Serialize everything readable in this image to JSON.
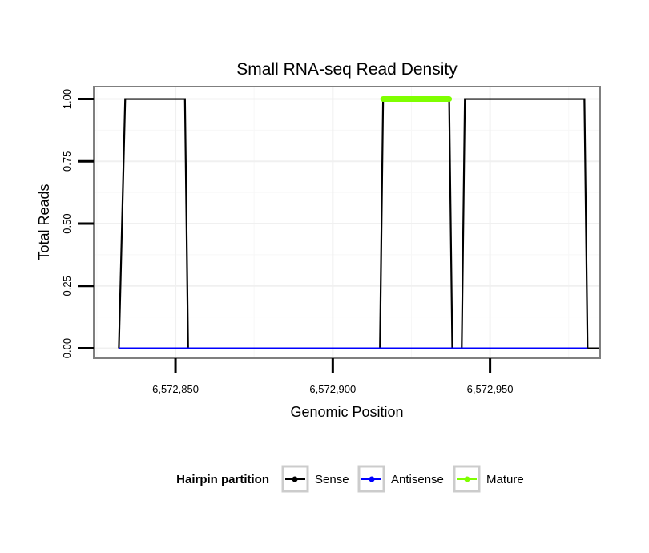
{
  "chart_data": {
    "type": "line",
    "title": "Small RNA-seq Read Density",
    "xlabel": "Genomic Position",
    "ylabel": "Total Reads",
    "xlim": [
      6572824,
      6572985
    ],
    "ylim": [
      -0.04,
      1.05
    ],
    "x_ticks": [
      6572850,
      6572900,
      6572950
    ],
    "x_tick_labels": [
      "6,572,850",
      "6,572,900",
      "6,572,950"
    ],
    "y_ticks": [
      0,
      0.25,
      0.5,
      0.75,
      1
    ],
    "y_tick_labels": [
      "0.00",
      "0.25",
      "0.50",
      "0.75",
      "1.00"
    ],
    "grid": true,
    "legend_title": "Hairpin partition",
    "legend_position": "bottom",
    "series": [
      {
        "name": "Sense",
        "color": "#000000",
        "x": [
          6572832,
          6572834,
          6572853,
          6572854,
          6572915,
          6572916,
          6572937,
          6572938,
          6572941,
          6572942,
          6572980,
          6572981,
          6572985
        ],
        "values": [
          0,
          1,
          1,
          0,
          0,
          1,
          1,
          0,
          0,
          1,
          1,
          0,
          0
        ]
      },
      {
        "name": "Antisense",
        "color": "#0000ff",
        "x": [
          6572832,
          6572981
        ],
        "values": [
          0,
          0
        ]
      },
      {
        "name": "Mature",
        "color": "#7fff00",
        "x": [
          6572916,
          6572937
        ],
        "values": [
          1,
          1
        ]
      }
    ]
  }
}
